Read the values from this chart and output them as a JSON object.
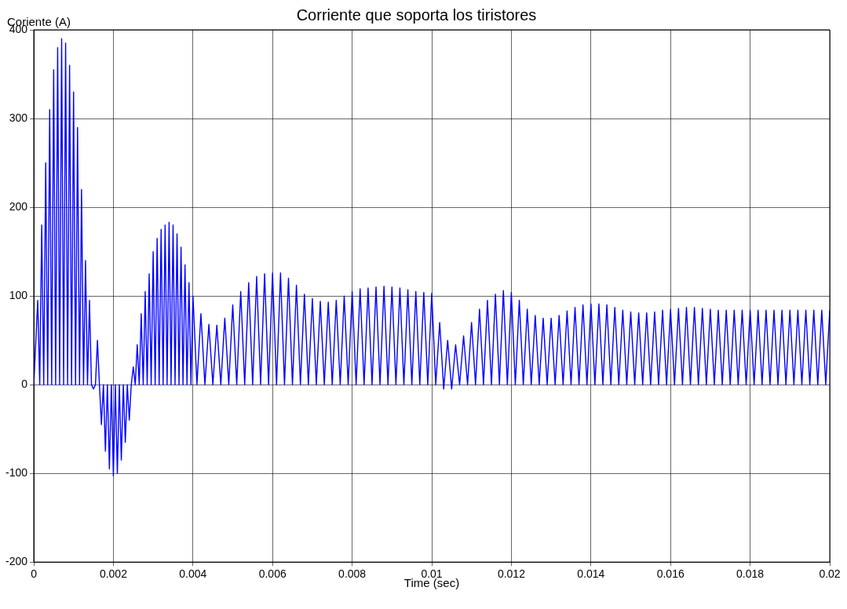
{
  "chart_data": {
    "type": "line",
    "title": "Corriente que soporta los tiristores",
    "xlabel": "Time (sec)",
    "ylabel": "Coriente (A)",
    "x": [
      0,
      0.0001,
      0.00015,
      0.0002,
      0.00025,
      0.0003,
      0.00035,
      0.0004,
      0.00045,
      0.0005,
      0.00055,
      0.0006,
      0.00065,
      0.0007,
      0.00075,
      0.0008,
      0.00085,
      0.0009,
      0.00095,
      0.001,
      0.00105,
      0.0011,
      0.00115,
      0.0012,
      0.00125,
      0.0013,
      0.00135,
      0.0014,
      0.00145,
      0.0015,
      0.00155,
      0.0016,
      0.00165,
      0.0017,
      0.00175,
      0.0018,
      0.00185,
      0.0019,
      0.00195,
      0.002,
      0.00205,
      0.0021,
      0.00215,
      0.0022,
      0.00225,
      0.0023,
      0.00235,
      0.0024,
      0.00245,
      0.0025,
      0.00255,
      0.0026,
      0.00265,
      0.0027,
      0.00275,
      0.0028,
      0.00285,
      0.0029,
      0.00295,
      0.003,
      0.00305,
      0.0031,
      0.00315,
      0.0032,
      0.00325,
      0.0033,
      0.00335,
      0.0034,
      0.00345,
      0.0035,
      0.00355,
      0.0036,
      0.00365,
      0.0037,
      0.00375,
      0.0038,
      0.00385,
      0.0039,
      0.00395,
      0.004,
      0.0041,
      0.0042,
      0.0043,
      0.0044,
      0.0045,
      0.0046,
      0.0047,
      0.0048,
      0.0049,
      0.005,
      0.0051,
      0.0052,
      0.0053,
      0.0054,
      0.0055,
      0.0056,
      0.0057,
      0.0058,
      0.0059,
      0.006,
      0.0061,
      0.0062,
      0.0063,
      0.0064,
      0.0065,
      0.0066,
      0.0067,
      0.0068,
      0.0069,
      0.007,
      0.0071,
      0.0072,
      0.0073,
      0.0074,
      0.0075,
      0.0076,
      0.0077,
      0.0078,
      0.0079,
      0.008,
      0.0081,
      0.0082,
      0.0083,
      0.0084,
      0.0085,
      0.0086,
      0.0087,
      0.0088,
      0.0089,
      0.009,
      0.0091,
      0.0092,
      0.0093,
      0.0094,
      0.0095,
      0.0096,
      0.0097,
      0.0098,
      0.0099,
      0.01,
      0.0101,
      0.0102,
      0.0103,
      0.0104,
      0.0105,
      0.0106,
      0.0107,
      0.0108,
      0.0109,
      0.011,
      0.0111,
      0.0112,
      0.0113,
      0.0114,
      0.0115,
      0.0116,
      0.0117,
      0.0118,
      0.0119,
      0.012,
      0.0121,
      0.0122,
      0.0123,
      0.0124,
      0.0125,
      0.0126,
      0.0127,
      0.0128,
      0.0129,
      0.013,
      0.0131,
      0.0132,
      0.0133,
      0.0134,
      0.0135,
      0.0136,
      0.0137,
      0.0138,
      0.0139,
      0.014,
      0.0141,
      0.0142,
      0.0143,
      0.0144,
      0.0145,
      0.0146,
      0.0147,
      0.0148,
      0.0149,
      0.015,
      0.0151,
      0.0152,
      0.0153,
      0.0154,
      0.0155,
      0.0156,
      0.0157,
      0.0158,
      0.0159,
      0.016,
      0.0161,
      0.0162,
      0.0163,
      0.0164,
      0.0165,
      0.0166,
      0.0167,
      0.0168,
      0.0169,
      0.017,
      0.0171,
      0.0172,
      0.0173,
      0.0174,
      0.0175,
      0.0176,
      0.0177,
      0.0178,
      0.0179,
      0.018,
      0.0181,
      0.0182,
      0.0183,
      0.0184,
      0.0185,
      0.0186,
      0.0187,
      0.0188,
      0.0189,
      0.019,
      0.0191,
      0.0192,
      0.0193,
      0.0194,
      0.0195,
      0.0196,
      0.0197,
      0.0198,
      0.0199,
      0.02
    ],
    "series": [
      {
        "color": "#0000ff",
        "values": [
          0,
          95,
          0,
          180,
          0,
          250,
          0,
          310,
          0,
          355,
          0,
          380,
          0,
          390,
          0,
          385,
          0,
          360,
          0,
          330,
          0,
          290,
          0,
          220,
          0,
          140,
          0,
          95,
          0,
          -5,
          0,
          50,
          0,
          -45,
          0,
          -75,
          0,
          -95,
          0,
          -103,
          0,
          -100,
          0,
          -85,
          0,
          -65,
          0,
          -40,
          0,
          20,
          0,
          45,
          0,
          80,
          0,
          105,
          0,
          125,
          0,
          150,
          0,
          165,
          0,
          175,
          0,
          180,
          0,
          183,
          0,
          180,
          0,
          170,
          0,
          155,
          0,
          135,
          0,
          115,
          0,
          100,
          0,
          80,
          0,
          68,
          0,
          67,
          0,
          75,
          0,
          90,
          0,
          105,
          0,
          115,
          0,
          122,
          0,
          125,
          0,
          126,
          0,
          126,
          0,
          120,
          0,
          112,
          0,
          102,
          0,
          97,
          0,
          94,
          0,
          93,
          0,
          95,
          0,
          100,
          0,
          105,
          0,
          108,
          0,
          109,
          0,
          110,
          0,
          111,
          0,
          110,
          0,
          109,
          0,
          107,
          0,
          105,
          0,
          104,
          0,
          103,
          0,
          70,
          -5,
          50,
          -5,
          45,
          0,
          55,
          0,
          70,
          0,
          85,
          0,
          95,
          0,
          102,
          0,
          106,
          0,
          104,
          0,
          95,
          0,
          85,
          0,
          78,
          0,
          75,
          0,
          75,
          0,
          78,
          0,
          83,
          0,
          87,
          0,
          90,
          0,
          91,
          0,
          91,
          0,
          90,
          0,
          87,
          0,
          84,
          0,
          82,
          0,
          81,
          0,
          81,
          0,
          82,
          0,
          84,
          0,
          85,
          0,
          86,
          0,
          87,
          0,
          87,
          0,
          86,
          0,
          85,
          0,
          84,
          0,
          84,
          0,
          84,
          0,
          84,
          0,
          84,
          0,
          84,
          0,
          84,
          0,
          84,
          0,
          84,
          0,
          84,
          0,
          84,
          0,
          84,
          0,
          84,
          0,
          84,
          0,
          84
        ]
      }
    ],
    "xlim": [
      0,
      0.02
    ],
    "xticks": [
      0,
      0.002,
      0.004,
      0.006,
      0.008,
      0.01,
      0.012,
      0.014,
      0.016,
      0.018,
      0.02
    ],
    "ylim": [
      -200,
      400
    ],
    "yticks": [
      -200,
      -100,
      0,
      100,
      200,
      300,
      400
    ],
    "grid": true,
    "legend": false,
    "marker": "none",
    "line_style": "solid"
  }
}
